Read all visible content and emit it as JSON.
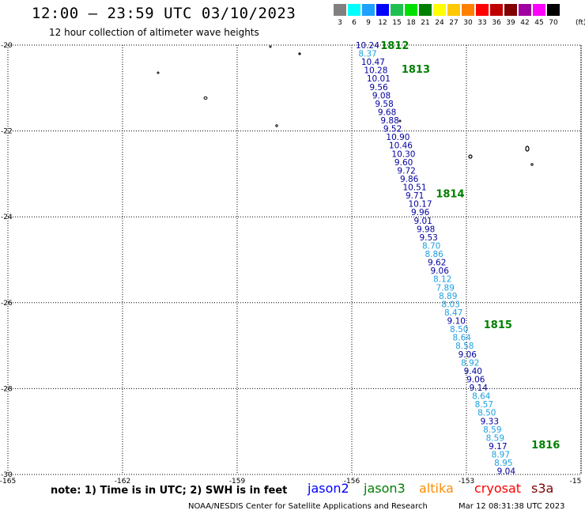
{
  "header": {
    "title": "12:00 — 23:59 UTC 03/10/2023",
    "subtitle": "12 hour collection of altimeter wave heights"
  },
  "legend": {
    "unit": "(ft)",
    "bins": [
      {
        "label": "3",
        "color": "#808080"
      },
      {
        "label": "6",
        "color": "#00ffff"
      },
      {
        "label": "9",
        "color": "#1ea0ff"
      },
      {
        "label": "12",
        "color": "#0000ff"
      },
      {
        "label": "15",
        "color": "#20c050"
      },
      {
        "label": "18",
        "color": "#00e000"
      },
      {
        "label": "21",
        "color": "#008000"
      },
      {
        "label": "24",
        "color": "#ffff00"
      },
      {
        "label": "27",
        "color": "#ffc800"
      },
      {
        "label": "30",
        "color": "#ff8000"
      },
      {
        "label": "33",
        "color": "#ff0000"
      },
      {
        "label": "36",
        "color": "#c00000"
      },
      {
        "label": "39",
        "color": "#800000"
      },
      {
        "label": "42",
        "color": "#a000a0"
      },
      {
        "label": "45",
        "color": "#ff00ff"
      },
      {
        "label": "70",
        "color": "#000000"
      }
    ]
  },
  "map": {
    "lon_range": [
      -165,
      -150
    ],
    "lat_range": [
      -30,
      -20
    ],
    "lon_ticks": [
      "-165",
      "-162",
      "-159",
      "-156",
      "-153",
      "-15"
    ],
    "lat_ticks": [
      "-20",
      "-22",
      "-24",
      "-26",
      "-28",
      "-30"
    ],
    "grid": "dotted",
    "pass_labels": [
      {
        "text": "1812",
        "lat": -20.0,
        "lon": -155.25
      },
      {
        "text": "1813",
        "lat": -20.55,
        "lon": -154.7
      },
      {
        "text": "1814",
        "lat": -23.45,
        "lon": -153.8
      },
      {
        "text": "1815",
        "lat": -26.5,
        "lon": -152.55
      },
      {
        "text": "1816",
        "lat": -29.3,
        "lon": -151.3
      }
    ],
    "pass_color": "#008000",
    "swh_colors": {
      "dark": "#0000a0",
      "light": "#1ea0e0"
    },
    "observations": [
      {
        "v": "10.24",
        "c": "dark"
      },
      {
        "v": "8.37",
        "c": "light"
      },
      {
        "v": "10.47",
        "c": "dark"
      },
      {
        "v": "10.28",
        "c": "dark"
      },
      {
        "v": "10.01",
        "c": "dark"
      },
      {
        "v": "9.56",
        "c": "dark"
      },
      {
        "v": "9.08",
        "c": "dark"
      },
      {
        "v": "9.58",
        "c": "dark"
      },
      {
        "v": "9.68",
        "c": "dark"
      },
      {
        "v": "9.88",
        "c": "dark"
      },
      {
        "v": "9.52",
        "c": "dark"
      },
      {
        "v": "10.90",
        "c": "dark"
      },
      {
        "v": "10.46",
        "c": "dark"
      },
      {
        "v": "10.30",
        "c": "dark"
      },
      {
        "v": "9.60",
        "c": "dark"
      },
      {
        "v": "9.72",
        "c": "dark"
      },
      {
        "v": "9.86",
        "c": "dark"
      },
      {
        "v": "10.51",
        "c": "dark"
      },
      {
        "v": "9.71",
        "c": "dark"
      },
      {
        "v": "10.17",
        "c": "dark"
      },
      {
        "v": "9.96",
        "c": "dark"
      },
      {
        "v": "9.01",
        "c": "dark"
      },
      {
        "v": "9.98",
        "c": "dark"
      },
      {
        "v": "9.53",
        "c": "dark"
      },
      {
        "v": "8.70",
        "c": "light"
      },
      {
        "v": "8.86",
        "c": "light"
      },
      {
        "v": "9.62",
        "c": "dark"
      },
      {
        "v": "9.06",
        "c": "dark"
      },
      {
        "v": "8.12",
        "c": "light"
      },
      {
        "v": "7.89",
        "c": "light"
      },
      {
        "v": "8.89",
        "c": "light"
      },
      {
        "v": "8.03",
        "c": "light"
      },
      {
        "v": "8.47",
        "c": "light"
      },
      {
        "v": "9.10",
        "c": "dark"
      },
      {
        "v": "8.50",
        "c": "light"
      },
      {
        "v": "8.64",
        "c": "light"
      },
      {
        "v": "8.58",
        "c": "light"
      },
      {
        "v": "9.06",
        "c": "dark"
      },
      {
        "v": "8.92",
        "c": "light"
      },
      {
        "v": "9.40",
        "c": "dark"
      },
      {
        "v": "9.06",
        "c": "dark"
      },
      {
        "v": "9.14",
        "c": "dark"
      },
      {
        "v": "8.64",
        "c": "light"
      },
      {
        "v": "8.57",
        "c": "light"
      },
      {
        "v": "8.50",
        "c": "light"
      },
      {
        "v": "9.33",
        "c": "dark"
      },
      {
        "v": "8.59",
        "c": "light"
      },
      {
        "v": "8.59",
        "c": "light"
      },
      {
        "v": "9.17",
        "c": "dark"
      },
      {
        "v": "8.97",
        "c": "light"
      },
      {
        "v": "8.95",
        "c": "light"
      },
      {
        "v": "9.04",
        "c": "dark"
      }
    ],
    "track": {
      "lat_start": -20.0,
      "lon_start": -155.9,
      "lat_end": -29.92,
      "lon_end": -152.2
    }
  },
  "note": "note:  1) Time is in UTC;  2) SWH is in feet",
  "satellites": [
    {
      "name": "jason2",
      "color": "#0000ff"
    },
    {
      "name": "jason3",
      "color": "#008000"
    },
    {
      "name": "altika",
      "color": "#ff8c00"
    },
    {
      "name": "cryosat",
      "color": "#ff0000"
    },
    {
      "name": "s3a",
      "color": "#800000"
    }
  ],
  "footer": {
    "left": "NOAA/NESDIS Center for Satellite Applications and Research",
    "right": "Mar 12 08:31:38 UTC 2023"
  }
}
